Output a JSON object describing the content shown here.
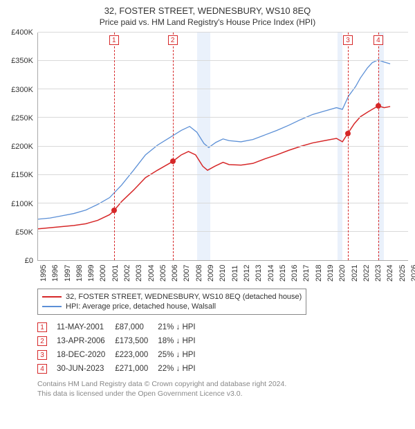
{
  "title": "32, FOSTER STREET, WEDNESBURY, WS10 8EQ",
  "subtitle": "Price paid vs. HM Land Registry's House Price Index (HPI)",
  "chart": {
    "type": "line",
    "x_domain": [
      1995,
      2026
    ],
    "y_domain": [
      0,
      400000
    ],
    "y_ticks": [
      0,
      50000,
      100000,
      150000,
      200000,
      250000,
      300000,
      350000,
      400000
    ],
    "y_tick_labels": [
      "£0",
      "£50K",
      "£100K",
      "£150K",
      "£200K",
      "£250K",
      "£300K",
      "£350K",
      "£400K"
    ],
    "x_ticks": [
      1995,
      1996,
      1997,
      1998,
      1999,
      2000,
      2001,
      2002,
      2003,
      2004,
      2005,
      2006,
      2007,
      2008,
      2009,
      2010,
      2011,
      2012,
      2013,
      2014,
      2015,
      2016,
      2017,
      2018,
      2019,
      2020,
      2021,
      2022,
      2023,
      2024,
      2025,
      2026
    ],
    "grid_color": "#d9d9d9",
    "background_color": "#ffffff",
    "axis_font_size": 11,
    "recession_band_color": "#eaf1fb",
    "recession_bands": [
      {
        "start": 2008.3,
        "end": 2009.4
      },
      {
        "start": 2020.1,
        "end": 2020.5
      },
      {
        "start": 2023.5,
        "end": 2024.0
      }
    ],
    "event_line_color": "#d62728",
    "event_line_dash": "2,3",
    "events": [
      {
        "n": "1",
        "x": 2001.36
      },
      {
        "n": "2",
        "x": 2006.28
      },
      {
        "n": "3",
        "x": 2020.96
      },
      {
        "n": "4",
        "x": 2023.5
      }
    ],
    "series": [
      {
        "key": "property",
        "label": "32, FOSTER STREET, WEDNESBURY, WS10 8EQ (detached house)",
        "color": "#d62728",
        "line_width": 1.5,
        "data": [
          [
            1995.0,
            55000
          ],
          [
            1996.0,
            57000
          ],
          [
            1997.0,
            59000
          ],
          [
            1998.0,
            61000
          ],
          [
            1999.0,
            64000
          ],
          [
            2000.0,
            70000
          ],
          [
            2001.0,
            80000
          ],
          [
            2001.36,
            87000
          ],
          [
            2002.0,
            103000
          ],
          [
            2003.0,
            123000
          ],
          [
            2004.0,
            145000
          ],
          [
            2005.0,
            158000
          ],
          [
            2006.0,
            170000
          ],
          [
            2006.28,
            173500
          ],
          [
            2007.0,
            185000
          ],
          [
            2007.6,
            191000
          ],
          [
            2008.2,
            185000
          ],
          [
            2008.8,
            165000
          ],
          [
            2009.2,
            158000
          ],
          [
            2009.8,
            165000
          ],
          [
            2010.5,
            172000
          ],
          [
            2011.0,
            168000
          ],
          [
            2012.0,
            167000
          ],
          [
            2013.0,
            170000
          ],
          [
            2014.0,
            178000
          ],
          [
            2015.0,
            185000
          ],
          [
            2016.0,
            193000
          ],
          [
            2017.0,
            200000
          ],
          [
            2018.0,
            206000
          ],
          [
            2019.0,
            210000
          ],
          [
            2020.0,
            214000
          ],
          [
            2020.5,
            208000
          ],
          [
            2020.96,
            223000
          ],
          [
            2021.5,
            240000
          ],
          [
            2022.0,
            252000
          ],
          [
            2022.6,
            260000
          ],
          [
            2023.0,
            265000
          ],
          [
            2023.5,
            271000
          ],
          [
            2024.0,
            268000
          ],
          [
            2024.5,
            270000
          ]
        ],
        "sale_points": [
          {
            "x": 2001.36,
            "y": 87000
          },
          {
            "x": 2006.28,
            "y": 173500
          },
          {
            "x": 2020.96,
            "y": 223000
          },
          {
            "x": 2023.5,
            "y": 271000
          }
        ]
      },
      {
        "key": "hpi",
        "label": "HPI: Average price, detached house, Walsall",
        "color": "#5b8fd6",
        "line_width": 1.3,
        "data": [
          [
            1995.0,
            72000
          ],
          [
            1996.0,
            74000
          ],
          [
            1997.0,
            78000
          ],
          [
            1998.0,
            82000
          ],
          [
            1999.0,
            88000
          ],
          [
            2000.0,
            98000
          ],
          [
            2001.0,
            110000
          ],
          [
            2002.0,
            132000
          ],
          [
            2003.0,
            158000
          ],
          [
            2004.0,
            185000
          ],
          [
            2005.0,
            202000
          ],
          [
            2006.0,
            215000
          ],
          [
            2007.0,
            228000
          ],
          [
            2007.7,
            235000
          ],
          [
            2008.3,
            225000
          ],
          [
            2008.9,
            205000
          ],
          [
            2009.3,
            198000
          ],
          [
            2009.9,
            207000
          ],
          [
            2010.5,
            213000
          ],
          [
            2011.0,
            210000
          ],
          [
            2012.0,
            208000
          ],
          [
            2013.0,
            212000
          ],
          [
            2014.0,
            220000
          ],
          [
            2015.0,
            228000
          ],
          [
            2016.0,
            237000
          ],
          [
            2017.0,
            247000
          ],
          [
            2018.0,
            256000
          ],
          [
            2019.0,
            262000
          ],
          [
            2020.0,
            268000
          ],
          [
            2020.5,
            265000
          ],
          [
            2021.0,
            288000
          ],
          [
            2021.6,
            305000
          ],
          [
            2022.0,
            320000
          ],
          [
            2022.6,
            338000
          ],
          [
            2023.0,
            347000
          ],
          [
            2023.5,
            352000
          ],
          [
            2024.0,
            348000
          ],
          [
            2024.5,
            345000
          ]
        ]
      }
    ]
  },
  "events_table": {
    "box_color": "#d62728",
    "rows": [
      {
        "n": "1",
        "date": "11-MAY-2001",
        "price": "£87,000",
        "delta": "21%",
        "dir": "down",
        "vs": "HPI"
      },
      {
        "n": "2",
        "date": "13-APR-2006",
        "price": "£173,500",
        "delta": "18%",
        "dir": "down",
        "vs": "HPI"
      },
      {
        "n": "3",
        "date": "18-DEC-2020",
        "price": "£223,000",
        "delta": "25%",
        "dir": "down",
        "vs": "HPI"
      },
      {
        "n": "4",
        "date": "30-JUN-2023",
        "price": "£271,000",
        "delta": "22%",
        "dir": "down",
        "vs": "HPI"
      }
    ]
  },
  "footer": {
    "line1": "Contains HM Land Registry data © Crown copyright and database right 2024.",
    "line2": "This data is licensed under the Open Government Licence v3.0."
  }
}
